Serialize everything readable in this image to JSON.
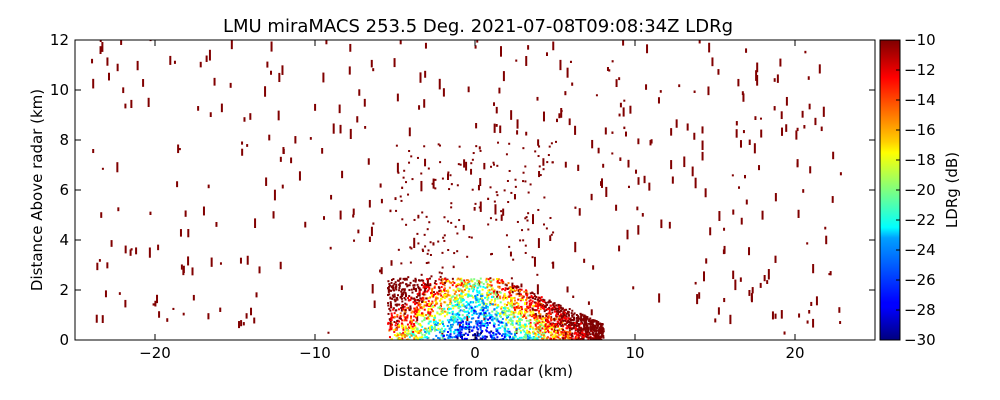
{
  "chart_data": {
    "type": "scatter",
    "title": "LMU miraMACS 253.5 Deg. 2021-07-08T09:08:34Z  LDRg",
    "xlabel": "Distance from radar (km)",
    "ylabel": "Distance Above radar  (km)",
    "xlim": [
      -25,
      25
    ],
    "ylim": [
      0,
      12
    ],
    "x_ticks": [
      -20,
      -10,
      0,
      10,
      20
    ],
    "x_tick_labels": [
      "−20",
      "−10",
      "0",
      "10",
      "20"
    ],
    "y_ticks": [
      0,
      2,
      4,
      6,
      8,
      10,
      12
    ],
    "y_tick_labels": [
      "0",
      "2",
      "4",
      "6",
      "8",
      "10",
      "12"
    ],
    "colorbar": {
      "label": "LDRg (dB)",
      "range": [
        -30,
        -10
      ],
      "colormap": "jet",
      "ticks": [
        -10,
        -12,
        -14,
        -16,
        -18,
        -20,
        -22,
        -24,
        -26,
        -28,
        -30
      ],
      "tick_labels": [
        "−10",
        "−12",
        "−14",
        "−16",
        "−18",
        "−20",
        "−22",
        "−24",
        "−26",
        "−28",
        "−30"
      ]
    },
    "grid": false,
    "notes_visible": "scattered dark-red (about -10 dB) range-gate returns across the whole plot; dense mixed-color returns (-30 to -12 dB) near the radar below 2.5 km between about -5 and 8 km",
    "colors": {
      "sparse": "#800000",
      "dense_palette": [
        "#00007f",
        "#0000ff",
        "#0080ff",
        "#00ffff",
        "#7fff7f",
        "#ffff00",
        "#ff8000",
        "#ff0000",
        "#800000"
      ]
    }
  }
}
